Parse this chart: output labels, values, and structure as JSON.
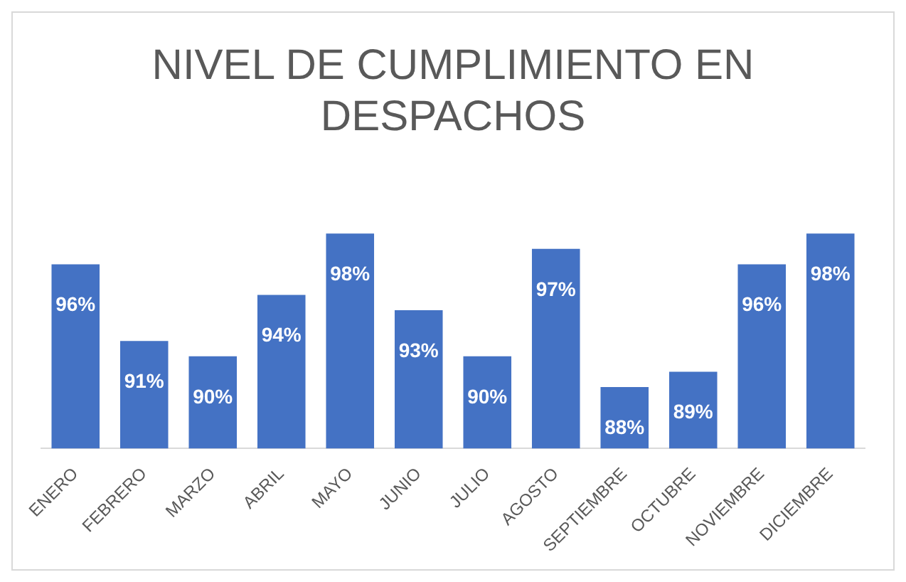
{
  "chart_data": {
    "type": "bar",
    "title": "NIVEL DE CUMPLIMIENTO EN DESPACHOS",
    "categories": [
      "ENERO",
      "FEBRERO",
      "MARZO",
      "ABRIL",
      "MAYO",
      "JUNIO",
      "JULIO",
      "AGOSTO",
      "SEPTIEMBRE",
      "OCTUBRE",
      "NOVIEMBRE",
      "DICIEMBRE"
    ],
    "values": [
      96,
      91,
      90,
      94,
      98,
      93,
      90,
      97,
      88,
      89,
      96,
      98
    ],
    "value_labels": [
      "96%",
      "91%",
      "90%",
      "94%",
      "98%",
      "93%",
      "90%",
      "97%",
      "88%",
      "89%",
      "96%",
      "98%"
    ],
    "color": "#4472c4",
    "grid": false,
    "legend": false,
    "tick_labels": "x"
  }
}
